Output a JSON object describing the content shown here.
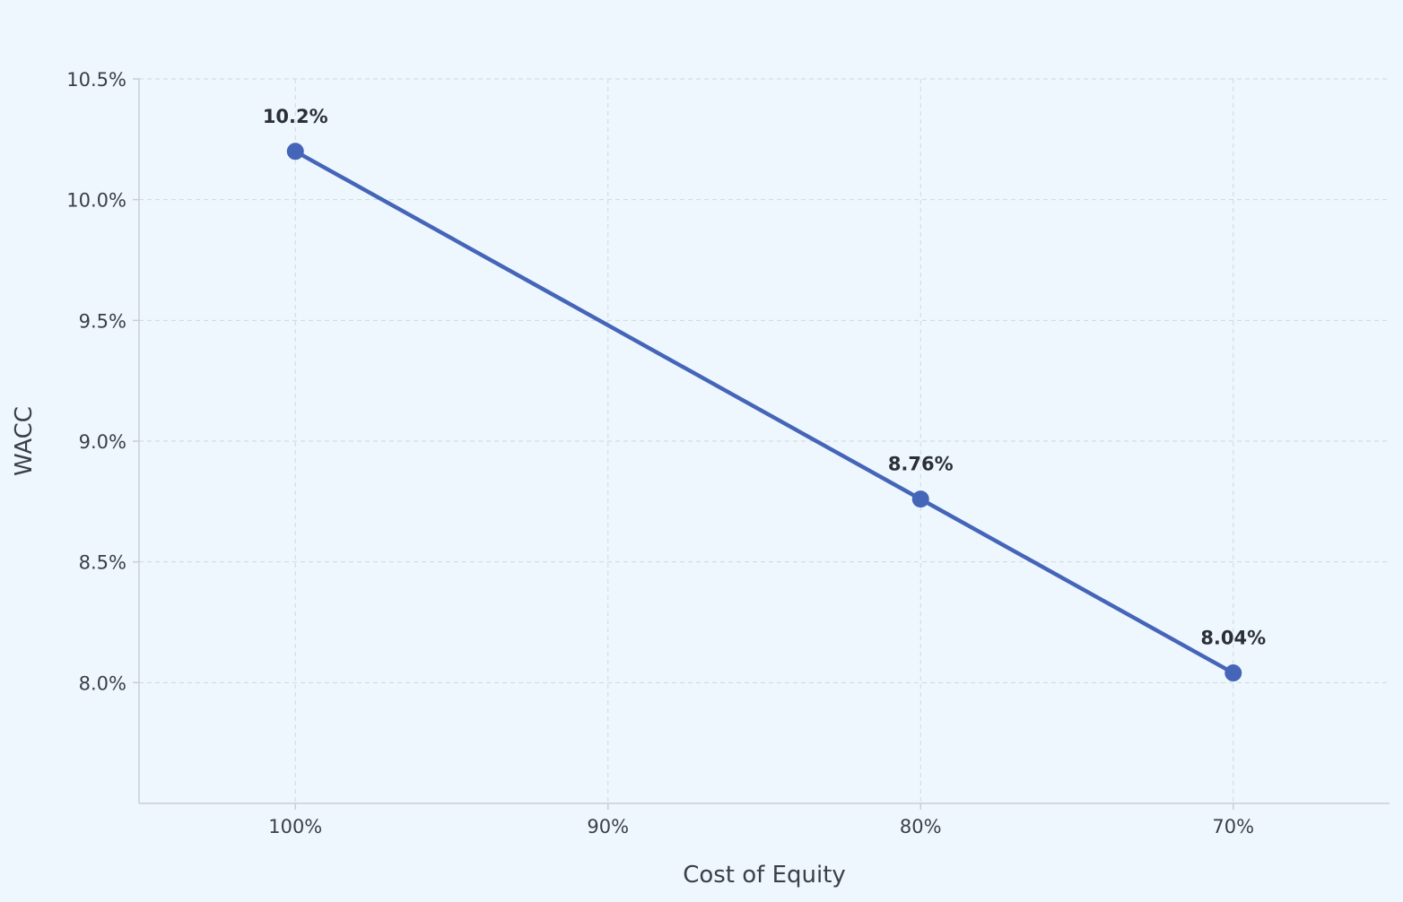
{
  "chart_data": {
    "type": "line",
    "title": "",
    "xlabel": "Cost of Equity",
    "ylabel": "WACC",
    "categories": [
      "100%",
      "90%",
      "80%",
      "70%"
    ],
    "x": [
      100,
      90,
      80,
      70
    ],
    "xlim": [
      105,
      65
    ],
    "ylim": [
      7.5,
      10.5
    ],
    "yticks": [
      8.0,
      8.5,
      9.0,
      9.5,
      10.0,
      10.5
    ],
    "ytick_labels": [
      "8.0%",
      "8.5%",
      "9.0%",
      "9.5%",
      "10.0%",
      "10.5%"
    ],
    "grid": true,
    "series": [
      {
        "x": [
          100,
          80,
          70
        ],
        "values": [
          10.2,
          8.76,
          8.04
        ],
        "labels": [
          "10.2%",
          "8.76%",
          "8.04%"
        ],
        "color": "#4565b8"
      }
    ]
  }
}
